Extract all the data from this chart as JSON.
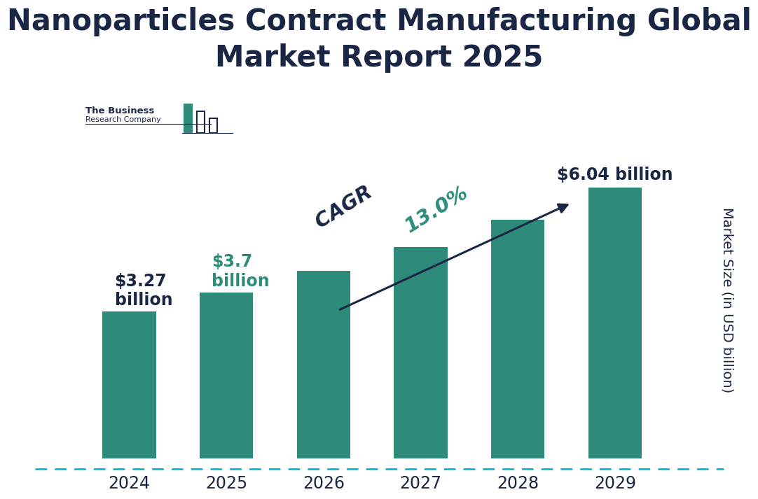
{
  "title": "Nanoparticles Contract Manufacturing Global\nMarket Report 2025",
  "title_color": "#1a2744",
  "title_fontsize": 30,
  "categories": [
    "2024",
    "2025",
    "2026",
    "2027",
    "2028",
    "2029"
  ],
  "values": [
    3.27,
    3.7,
    4.18,
    4.72,
    5.33,
    6.04
  ],
  "bar_color": "#2e8b7a",
  "ylabel": "Market Size (in USD billion)",
  "ylabel_color": "#1a2744",
  "background_color": "#ffffff",
  "dashed_line_color": "#00bcd4",
  "bar_width": 0.55,
  "ylim": [
    0,
    7.2
  ],
  "cagr_label": "CAGR ",
  "cagr_pct": "13.0%",
  "cagr_label_color": "#1a2744",
  "cagr_pct_color": "#2e8b7a",
  "arrow_color": "#1a2744",
  "ann_2024_text": "$3.27\nbillion",
  "ann_2024_color": "#1a2744",
  "ann_2025_text": "$3.7\nbillion",
  "ann_2025_color": "#2e8b7a",
  "ann_2029_text": "$6.04 billion",
  "ann_2029_color": "#1a2744",
  "logo_text1": "The Business",
  "logo_text2": "Research Company",
  "logo_color": "#1a2744"
}
